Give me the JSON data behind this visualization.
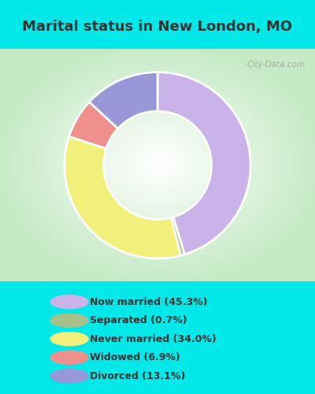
{
  "title": "Marital status in New London, MO",
  "slices": [
    45.3,
    0.7,
    34.0,
    6.9,
    13.1
  ],
  "labels": [
    "Now married (45.3%)",
    "Separated (0.7%)",
    "Never married (34.0%)",
    "Widowed (6.9%)",
    "Divorced (13.1%)"
  ],
  "colors": [
    "#c9b3e8",
    "#a8c08a",
    "#f0f07a",
    "#f0908c",
    "#9898d8"
  ],
  "outer_bg": "#00e8e8",
  "chart_bg_left": "#c8e8c8",
  "chart_bg_right": "#f0f8f0",
  "legend_bg": "#00e8e8",
  "title_color": "#333333",
  "watermark": "City-Data.com",
  "donut_width": 0.42,
  "figsize": [
    4.0,
    5.0
  ],
  "dpi": 100,
  "title_fontsize": 13,
  "legend_fontsize": 9,
  "start_angle": 90
}
